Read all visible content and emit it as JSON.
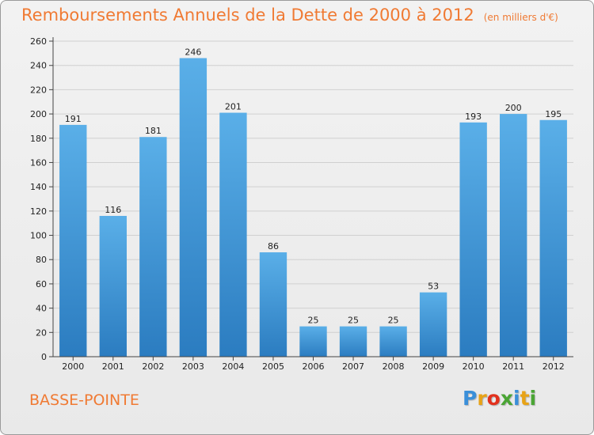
{
  "chart_data": {
    "type": "bar",
    "title": "Remboursements Annuels de la Dette de 2000 à 2012",
    "subtitle": "(en milliers d'€)",
    "categories": [
      "2000",
      "2001",
      "2002",
      "2003",
      "2004",
      "2005",
      "2006",
      "2007",
      "2008",
      "2009",
      "2010",
      "2011",
      "2012"
    ],
    "values": [
      191,
      116,
      181,
      246,
      201,
      86,
      25,
      25,
      25,
      53,
      193,
      200,
      195
    ],
    "ylim": [
      0,
      260
    ],
    "yticks": [
      0,
      20,
      40,
      60,
      80,
      100,
      120,
      140,
      160,
      180,
      200,
      220,
      240,
      260
    ],
    "grid": true,
    "xlabel": "",
    "ylabel": ""
  },
  "commune": "BASSE-POINTE",
  "logo": {
    "letters": [
      "P",
      "r",
      "o",
      "x",
      "i",
      "t",
      "i"
    ],
    "colors": [
      "#3a8fd9",
      "#e8a317",
      "#e2311d",
      "#4aa534",
      "#3a8fd9",
      "#e8a317",
      "#4aa534"
    ]
  },
  "colors": {
    "bar_top": "#5aafe8",
    "bar_bottom": "#2b7cc0",
    "title": "#f07a33",
    "grid": "#d0d0d0"
  }
}
